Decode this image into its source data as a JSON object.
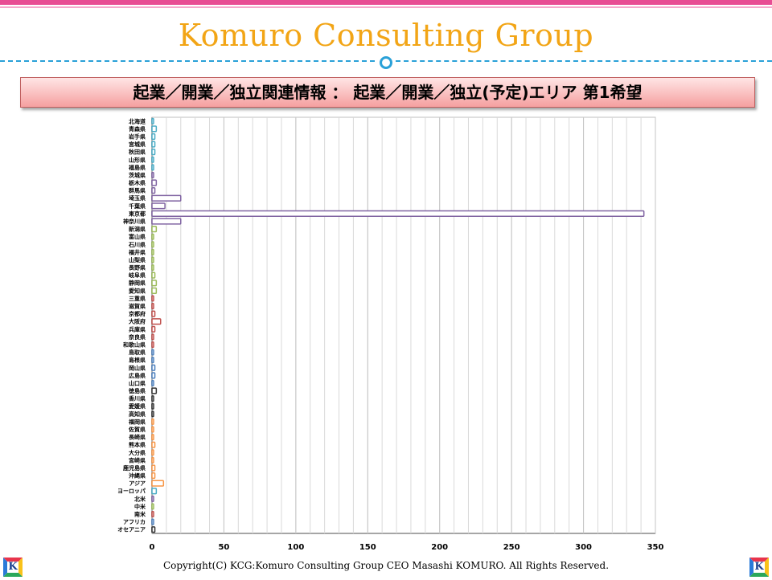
{
  "header": {
    "brand": "Komuro Consulting Group",
    "heading": "起業／開業／独立関連情報 ： 起業／開業／独立(予定)エリア 第1希望"
  },
  "footer": {
    "copyright": "Copyright(C) KCG:Komuro Consulting Group CEO Masashi KOMURO. All Rights Reserved.",
    "logo_letter": "K"
  },
  "chart_data": {
    "type": "bar",
    "orientation": "horizontal",
    "xlim": [
      0,
      350
    ],
    "xticks": [
      0,
      50,
      100,
      150,
      200,
      250,
      300,
      350
    ],
    "grid": true,
    "categories": [
      "北海道",
      "青森県",
      "岩手県",
      "宮城県",
      "秋田県",
      "山形県",
      "福島県",
      "茨城県",
      "栃木県",
      "群馬県",
      "埼玉県",
      "千葉県",
      "東京都",
      "神奈川県",
      "新潟県",
      "富山県",
      "石川県",
      "福井県",
      "山梨県",
      "長野県",
      "岐阜県",
      "静岡県",
      "愛知県",
      "三重県",
      "滋賀県",
      "京都府",
      "大阪府",
      "兵庫県",
      "奈良県",
      "和歌山県",
      "鳥取県",
      "島根県",
      "岡山県",
      "広島県",
      "山口県",
      "徳島県",
      "香川県",
      "愛媛県",
      "高知県",
      "福岡県",
      "佐賀県",
      "長崎県",
      "熊本県",
      "大分県",
      "宮崎県",
      "鹿児島県",
      "沖縄県",
      "アジア",
      "ヨーロッパ",
      "北米",
      "中米",
      "南米",
      "アフリカ",
      "オセアニア"
    ],
    "values": [
      1,
      3,
      2,
      2,
      2,
      1,
      1,
      1,
      3,
      2,
      20,
      9,
      342,
      20,
      3,
      1,
      1,
      1,
      1,
      1,
      2,
      3,
      3,
      1,
      1,
      2,
      6,
      2,
      1,
      1,
      1,
      1,
      2,
      2,
      1,
      3,
      1,
      1,
      1,
      1,
      1,
      1,
      2,
      1,
      1,
      2,
      2,
      8,
      3,
      1,
      1,
      1,
      1,
      2
    ],
    "colors": [
      "#4aacc5",
      "#4aacc5",
      "#4aacc5",
      "#4aacc5",
      "#4aacc5",
      "#4aacc5",
      "#4aacc5",
      "#8064a2",
      "#8064a2",
      "#8064a2",
      "#8064a2",
      "#8064a2",
      "#8064a2",
      "#8064a2",
      "#9bbb59",
      "#9bbb59",
      "#9bbb59",
      "#9bbb59",
      "#9bbb59",
      "#9bbb59",
      "#9bbb59",
      "#9bbb59",
      "#9bbb59",
      "#c0504d",
      "#c0504d",
      "#c0504d",
      "#c0504d",
      "#c0504d",
      "#c0504d",
      "#c0504d",
      "#4f81bd",
      "#4f81bd",
      "#4f81bd",
      "#4f81bd",
      "#4f81bd",
      "#333333",
      "#333333",
      "#333333",
      "#333333",
      "#f79646",
      "#f79646",
      "#f79646",
      "#f79646",
      "#f79646",
      "#f79646",
      "#f79646",
      "#f79646",
      "#f79646",
      "#4aacc5",
      "#8064a2",
      "#9bbb59",
      "#c0504d",
      "#4f81bd",
      "#333333"
    ]
  }
}
